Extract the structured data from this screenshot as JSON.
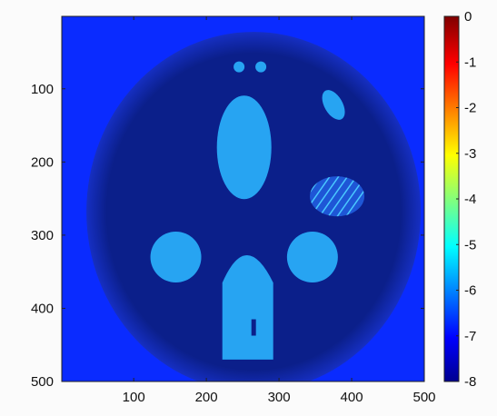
{
  "chart_data": {
    "type": "heatmap",
    "title": "",
    "xlabel": "",
    "ylabel": "",
    "xlim": [
      1,
      500
    ],
    "ylim": [
      500,
      1
    ],
    "y_reversed": true,
    "xticks": [
      100,
      200,
      300,
      400,
      500
    ],
    "yticks": [
      100,
      200,
      300,
      400,
      500
    ],
    "colorbar": {
      "colormap": "jet",
      "range": [
        -8,
        0
      ],
      "ticks": [
        0,
        -1,
        -2,
        -3,
        -4,
        -5,
        -6,
        -7,
        -8
      ],
      "tick_labels": [
        "0",
        "-1",
        "-2",
        "-3",
        "-4",
        "-5",
        "-6",
        "-7",
        "-8"
      ]
    },
    "colors": {
      "background_value_color": "#0a2bff",
      "phantom_value_color": "#0b1f8a",
      "insert_value_color": "#27a4f2"
    },
    "regions": [
      {
        "name": "background",
        "approx_value": -7.4
      },
      {
        "name": "phantom-body",
        "approx_value": -7.7
      },
      {
        "name": "central-ellipse",
        "approx_value": -5.6
      },
      {
        "name": "left-circle",
        "approx_value": -5.6
      },
      {
        "name": "right-circle",
        "approx_value": -5.6
      },
      {
        "name": "bottom-arch",
        "approx_value": -5.6
      },
      {
        "name": "small-ellipse",
        "approx_value": -5.6
      },
      {
        "name": "top-dots",
        "approx_value": -5.6
      },
      {
        "name": "hatched-region",
        "approx_value": -5.5
      }
    ]
  }
}
